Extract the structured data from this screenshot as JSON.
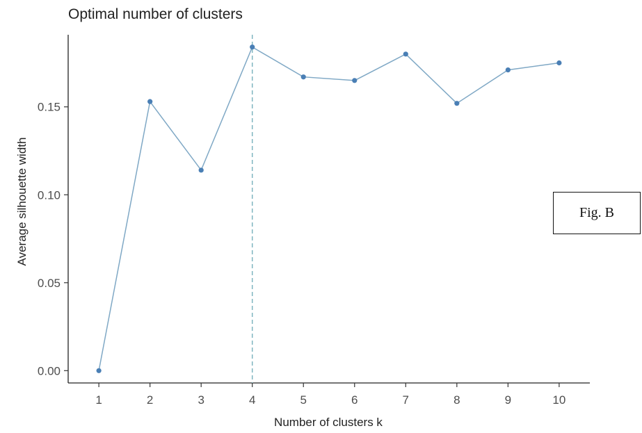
{
  "annotation": {
    "label": "Fig. B"
  },
  "chart_data": {
    "type": "line",
    "title": "Optimal number of clusters",
    "xlabel": "Number of clusters k",
    "ylabel": "Average silhouette width",
    "x": [
      1,
      2,
      3,
      4,
      5,
      6,
      7,
      8,
      9,
      10
    ],
    "series": [
      {
        "values": [
          0.0,
          0.153,
          0.114,
          0.184,
          0.167,
          0.165,
          0.18,
          0.152,
          0.171,
          0.175
        ]
      }
    ],
    "ylim": [
      -0.007,
      0.191
    ],
    "yticks": [
      0.0,
      0.05,
      0.1,
      0.15
    ],
    "ytick_labels": [
      "0.00",
      "0.05",
      "0.10",
      "0.15"
    ],
    "optimal_k": 4,
    "grid": false,
    "colors": {
      "line": "#7fa8c5",
      "point": "#4a7fb5",
      "vline": "#7fb5c0"
    }
  }
}
